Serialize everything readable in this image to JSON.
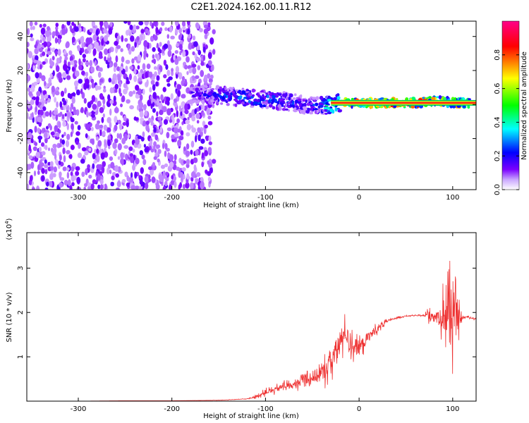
{
  "title": "C2E1.2024.162.00.11.R12",
  "chart_data": [
    {
      "type": "heatmap",
      "name": "spectrogram",
      "xlabel": "Height of straight line (km)",
      "ylabel": "Frequency (Hz)",
      "xlim": [
        -355,
        125
      ],
      "ylim": [
        -50,
        49
      ],
      "xticks": [
        -300,
        -200,
        -100,
        0,
        100
      ],
      "xtick_labels": [
        "-300",
        "-200",
        "-100",
        "0",
        "100"
      ],
      "yticks": [
        -40,
        -20,
        0,
        20,
        40
      ],
      "ytick_labels": [
        "-40",
        "-20",
        "0",
        "20",
        "40"
      ],
      "colorbar": {
        "label": "Normalized spectral amplitude",
        "range": [
          0,
          1
        ],
        "ticks": [
          0.0,
          0.2,
          0.4,
          0.6,
          0.8
        ],
        "tick_labels": [
          "0.0",
          "0.2",
          "0.4",
          "0.6",
          "0.8"
        ],
        "colormap": [
          "#ffffff",
          "#7a00ff",
          "#0000ff",
          "#00ffff",
          "#00ff00",
          "#ffff00",
          "#ff0000",
          "#ff0088"
        ]
      },
      "noise_region": {
        "x": [
          -355,
          -155
        ],
        "y": [
          -50,
          49
        ]
      },
      "ridge": {
        "x": [
          -180,
          -160,
          -140,
          -120,
          -100,
          -80,
          -60,
          -40,
          -20,
          0,
          20,
          40,
          60,
          80,
          90,
          100,
          120
        ],
        "y": [
          6,
          6,
          5,
          4,
          3,
          2,
          0,
          -1,
          1,
          1,
          1,
          1,
          1,
          2,
          2,
          1,
          1
        ],
        "amplitude": [
          0.25,
          0.3,
          0.35,
          0.4,
          0.4,
          0.35,
          0.3,
          0.4,
          0.7,
          0.85,
          0.85,
          0.85,
          0.85,
          0.85,
          0.75,
          0.8,
          0.8
        ]
      },
      "hot_band": {
        "x": [
          -30,
          125
        ],
        "y": 1
      }
    },
    {
      "type": "line",
      "name": "snr",
      "xlabel": "Height of straight line (km)",
      "ylabel": "SNR (10 * v/v)",
      "y_multiplier": "(x10",
      "y_multiplier_exp": "4",
      "y_multiplier_close": ")",
      "xlim": [
        -355,
        125
      ],
      "ylim": [
        0,
        3.8
      ],
      "xticks": [
        -300,
        -200,
        -100,
        0,
        100
      ],
      "xtick_labels": [
        "-300",
        "-200",
        "-100",
        "0",
        "100"
      ],
      "yticks": [
        1,
        2,
        3
      ],
      "ytick_labels": [
        "1",
        "2",
        "3"
      ],
      "color": "#ee3333",
      "series": [
        {
          "x": [
            -355,
            -300,
            -250,
            -200,
            -150,
            -120,
            -110,
            -100,
            -90,
            -80,
            -70,
            -60,
            -50,
            -40,
            -30,
            -25,
            -20,
            -15,
            -10,
            0,
            10,
            20,
            30,
            40,
            50,
            60,
            70,
            75,
            80,
            85,
            90,
            95,
            100,
            105,
            110,
            115,
            125
          ],
          "y": [
            0.0,
            0.0,
            0.01,
            0.01,
            0.02,
            0.05,
            0.1,
            0.2,
            0.25,
            0.35,
            0.35,
            0.5,
            0.55,
            0.6,
            0.9,
            1.1,
            1.3,
            1.6,
            1.3,
            1.2,
            1.45,
            1.65,
            1.8,
            1.88,
            1.92,
            1.93,
            1.93,
            1.95,
            1.92,
            1.9,
            1.95,
            2.0,
            1.9,
            1.85,
            1.88,
            1.9,
            1.85
          ],
          "jitter": [
            0,
            0,
            0,
            0,
            0.005,
            0.01,
            0.05,
            0.1,
            0.12,
            0.15,
            0.15,
            0.25,
            0.3,
            0.4,
            0.5,
            0.6,
            0.7,
            0.4,
            0.45,
            0.35,
            0.25,
            0.18,
            0.05,
            0.03,
            0.02,
            0.02,
            0.02,
            0.4,
            0.15,
            0.25,
            0.9,
            1.4,
            1.4,
            0.7,
            0.05,
            0.03,
            0.03
          ]
        }
      ]
    }
  ]
}
